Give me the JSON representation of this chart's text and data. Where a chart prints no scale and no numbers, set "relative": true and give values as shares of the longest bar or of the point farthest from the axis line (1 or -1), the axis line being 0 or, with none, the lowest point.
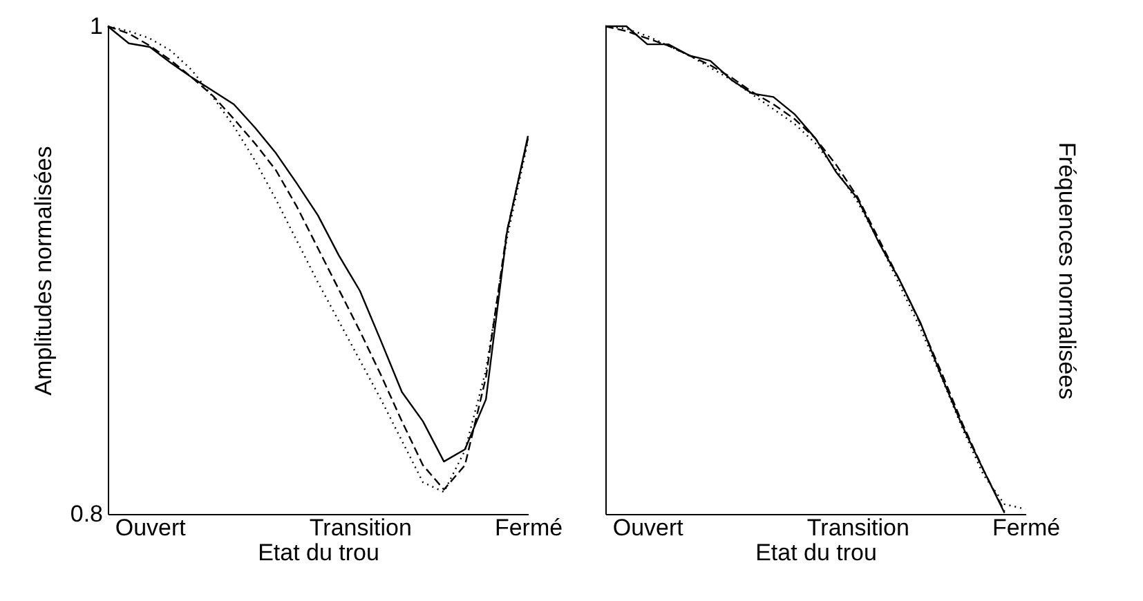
{
  "chart_data": [
    {
      "type": "line",
      "xlabel": "Etat du trou",
      "ylabel": "Amplitudes normalisées",
      "categories": [
        null,
        null,
        "Ouvert",
        null,
        null,
        null,
        null,
        null,
        null,
        null,
        null,
        null,
        "Transition",
        null,
        null,
        null,
        null,
        null,
        null,
        null,
        "Fermé"
      ],
      "ylim": [
        0.8,
        1
      ],
      "yticks": [
        {
          "value": 0.8,
          "label": "0.8"
        },
        {
          "value": 1,
          "label": "1"
        }
      ],
      "grid": false,
      "series": [
        {
          "color": "#000000",
          "line_style": "solid",
          "values": [
            1,
            0.993,
            0.9915,
            0.985,
            0.979,
            0.9735,
            0.968,
            0.9585,
            0.948,
            0.9355,
            0.9225,
            0.906,
            0.8915,
            0.871,
            0.85,
            0.838,
            0.8215,
            0.8265,
            0.847,
            0.9155,
            0.955
          ]
        },
        {
          "color": "#000000",
          "line_style": "dashed",
          "values": [
            1,
            0.997,
            0.992,
            0.986,
            0.979,
            0.9715,
            0.962,
            0.952,
            0.941,
            0.926,
            0.909,
            0.892,
            0.875,
            0.857,
            0.838,
            0.82,
            0.81,
            0.82,
            0.856,
            0.916,
            0.954
          ]
        },
        {
          "color": "#000000",
          "line_style": "dotted",
          "values": [
            1,
            0.998,
            0.995,
            0.99,
            0.982,
            0.971,
            0.959,
            0.945,
            0.929,
            0.912,
            0.895,
            0.879,
            0.863,
            0.847,
            0.83,
            0.813,
            0.809,
            0.826,
            0.859,
            0.913,
            0.953
          ]
        }
      ]
    },
    {
      "type": "line",
      "xlabel": "Etat du trou",
      "ylabel": "Fréquences normalisées",
      "relative": true,
      "categories": [
        null,
        null,
        "Ouvert",
        null,
        null,
        null,
        null,
        null,
        null,
        null,
        null,
        null,
        "Transition",
        null,
        null,
        null,
        null,
        null,
        null,
        null,
        "Fermé"
      ],
      "grid": false,
      "series": [
        {
          "color": "#000000",
          "line_style": "solid",
          "values": [
            1,
            1,
            0.963,
            0.963,
            0.94,
            0.929,
            0.89,
            0.862,
            0.855,
            0.82,
            0.77,
            0.7,
            0.647,
            0.558,
            0.48,
            0.392,
            0.282,
            0.18,
            0.09,
            0.002,
            null
          ]
        },
        {
          "color": "#000000",
          "line_style": "dashed",
          "values": [
            1,
            0.99,
            0.975,
            0.96,
            0.94,
            0.92,
            0.895,
            0.865,
            0.84,
            0.81,
            0.77,
            0.715,
            0.65,
            0.565,
            0.48,
            0.39,
            0.29,
            0.185,
            0.09,
            0.005,
            null
          ]
        },
        {
          "color": "#000000",
          "line_style": "dotted",
          "values": [
            1,
            0.995,
            0.98,
            0.96,
            0.94,
            0.915,
            0.89,
            0.86,
            0.83,
            0.8,
            0.76,
            0.705,
            0.64,
            0.56,
            0.47,
            0.38,
            0.28,
            0.175,
            0.08,
            0.02,
            0.01
          ]
        }
      ]
    }
  ]
}
